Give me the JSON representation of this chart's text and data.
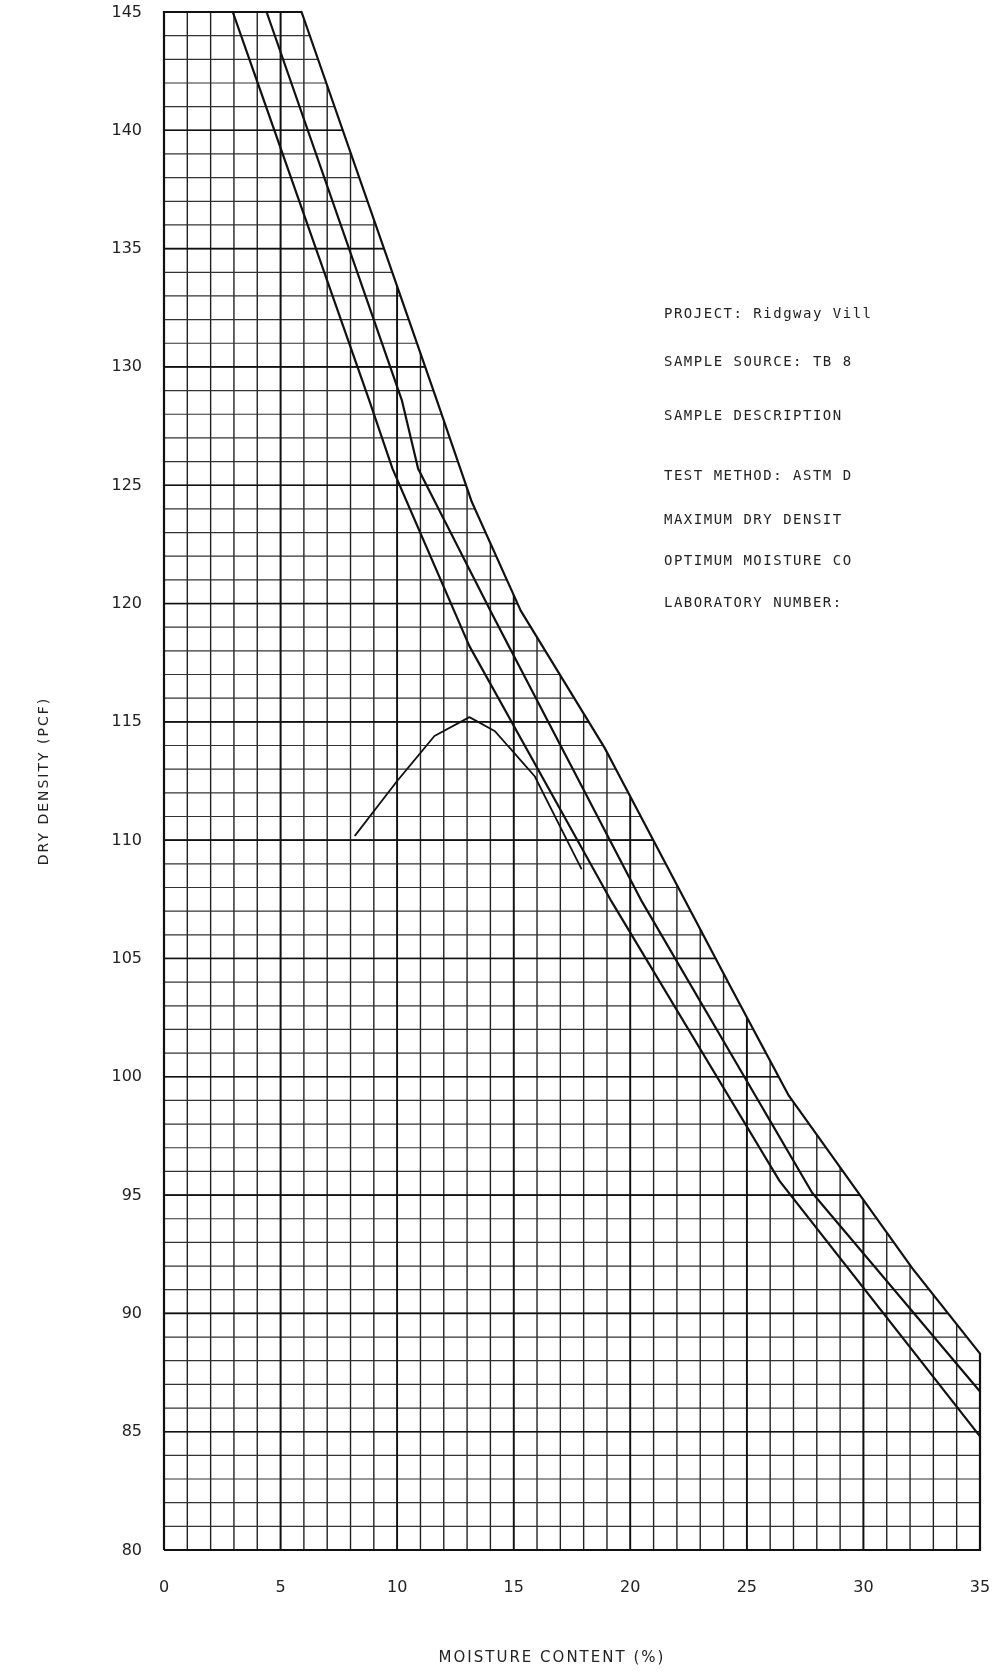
{
  "chart_data": {
    "type": "line",
    "xlabel": "MOISTURE CONTENT (%)",
    "ylabel": "DRY DENSITY (PCF)",
    "xlim": [
      0,
      35
    ],
    "ylim": [
      80,
      145
    ],
    "xticks": [
      0,
      5,
      10,
      15,
      20,
      25,
      30,
      35
    ],
    "yticks": [
      80,
      85,
      90,
      95,
      100,
      105,
      110,
      115,
      120,
      125,
      130,
      135,
      140,
      145
    ],
    "grid": true,
    "series": [
      {
        "color": "#111111",
        "x": [
          2.95,
          8.8,
          9.8,
          13.1,
          19.2,
          26.4,
          35
        ],
        "values": [
          145,
          128.6,
          125.7,
          118.2,
          107.4,
          95.6,
          84.8
        ]
      },
      {
        "color": "#111111",
        "x": [
          4.4,
          10.2,
          10.9,
          14.1,
          20.5,
          27.8,
          35
        ],
        "values": [
          145,
          128.6,
          125.7,
          119.5,
          107.4,
          95.1,
          86.7
        ]
      },
      {
        "color": "#111111",
        "x": [
          5.9,
          11.7,
          13.2,
          15.3,
          18.9,
          24.3,
          26.8,
          32.1,
          35
        ],
        "values": [
          145,
          128.6,
          124.3,
          119.7,
          113.9,
          103.8,
          99.2,
          91.9,
          88.3
        ]
      },
      {
        "color": "#111111",
        "x": [
          8.2,
          10.0,
          11.6,
          13.1,
          14.2,
          15.9,
          17.9
        ],
        "values": [
          110.2,
          112.5,
          114.4,
          115.2,
          114.6,
          112.7,
          108.8
        ]
      }
    ],
    "annotations": [
      "PROJECT: Ridgway Vill",
      "SAMPLE SOURCE:  TB 8",
      "SAMPLE DESCRIPTION",
      "TEST METHOD: ASTM D",
      "MAXIMUM DRY DENSIT",
      "OPTIMUM MOISTURE CO",
      "LABORATORY NUMBER:"
    ]
  }
}
